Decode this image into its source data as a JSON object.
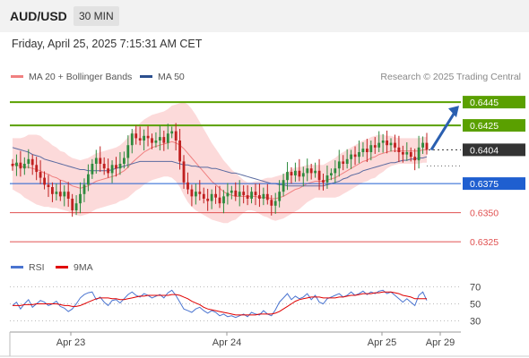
{
  "header": {
    "symbol": "AUD/USD",
    "timeframe": "30 MIN"
  },
  "datetime": "Friday, April 25, 2025 7:15:31 AM CET",
  "legend": {
    "bollinger_label": "MA 20 + Bollinger Bands",
    "ma50_label": "MA 50",
    "credit": "Research © 2025 Trading Central",
    "bollinger_color": "#f08080",
    "ma50_color": "#2b4f8e"
  },
  "rsi_legend": {
    "rsi_label": "RSI",
    "ma_label": "9MA",
    "rsi_color": "#4a74d0",
    "ma_color": "#e00000"
  },
  "chart_data": {
    "type": "candlestick",
    "price_range": [
      0.6312,
      0.6462
    ],
    "current_price": 0.6404,
    "levels": [
      {
        "label": "0.6445",
        "value": 0.6445,
        "kind": "resistance",
        "color": "#5aa000"
      },
      {
        "label": "0.6425",
        "value": 0.6425,
        "kind": "resistance",
        "color": "#5aa000"
      },
      {
        "label": "0.6404",
        "value": 0.6404,
        "kind": "current",
        "color": "#333333"
      },
      {
        "label": "0.6375",
        "value": 0.6375,
        "kind": "pivot",
        "color": "#1f5fd0"
      },
      {
        "label": "0.6350",
        "value": 0.635,
        "kind": "support",
        "color": "#e05050"
      },
      {
        "label": "0.6325",
        "value": 0.6325,
        "kind": "support",
        "color": "#e05050"
      }
    ],
    "forecast_target": 0.6445,
    "x_labels": [
      "Apr 23",
      "Apr 24",
      "Apr 25",
      "Apr 29"
    ],
    "closes": [
      0.639,
      0.6393,
      0.6388,
      0.6392,
      0.6396,
      0.6391,
      0.6385,
      0.638,
      0.6374,
      0.6372,
      0.6366,
      0.6368,
      0.6364,
      0.6368,
      0.6362,
      0.6352,
      0.6358,
      0.6366,
      0.6374,
      0.6383,
      0.6392,
      0.6397,
      0.6392,
      0.6388,
      0.6384,
      0.6391,
      0.6388,
      0.6392,
      0.6397,
      0.6408,
      0.6418,
      0.6414,
      0.6412,
      0.6416,
      0.6414,
      0.641,
      0.6412,
      0.6415,
      0.641,
      0.6418,
      0.642,
      0.6412,
      0.6394,
      0.6376,
      0.637,
      0.6364,
      0.6368,
      0.6366,
      0.6362,
      0.636,
      0.6366,
      0.6363,
      0.6358,
      0.6364,
      0.6367,
      0.6369,
      0.6364,
      0.6368,
      0.6365,
      0.6362,
      0.6368,
      0.6365,
      0.6362,
      0.6366,
      0.6361,
      0.6356,
      0.636,
      0.6368,
      0.6378,
      0.6385,
      0.6382,
      0.6386,
      0.6381,
      0.6384,
      0.6388,
      0.6384,
      0.6386,
      0.6378,
      0.6376,
      0.6382,
      0.6384,
      0.6388,
      0.6394,
      0.6392,
      0.6396,
      0.64,
      0.6398,
      0.6402,
      0.6405,
      0.6402,
      0.6408,
      0.6406,
      0.641,
      0.6412,
      0.6408,
      0.641,
      0.6406,
      0.6402,
      0.64,
      0.6402,
      0.6398,
      0.6395,
      0.6406,
      0.641,
      0.6404
    ],
    "ma20": [
      0.6392,
      0.6391,
      0.639,
      0.6389,
      0.6389,
      0.6388,
      0.6387,
      0.6386,
      0.6384,
      0.6383,
      0.6381,
      0.638,
      0.6378,
      0.6377,
      0.6375,
      0.6373,
      0.6372,
      0.6371,
      0.6372,
      0.6373,
      0.6375,
      0.6377,
      0.6378,
      0.6379,
      0.638,
      0.6381,
      0.6382,
      0.6384,
      0.6386,
      0.6389,
      0.6393,
      0.6396,
      0.6399,
      0.6402,
      0.6404,
      0.6406,
      0.6407,
      0.6408,
      0.6409,
      0.641,
      0.6411,
      0.641,
      0.6408,
      0.6405,
      0.6401,
      0.6397,
      0.6393,
      0.6389,
      0.6385,
      0.6381,
      0.6377,
      0.6374,
      0.6371,
      0.6368,
      0.6366,
      0.6365,
      0.6364,
      0.6364,
      0.6364,
      0.6364,
      0.6364,
      0.6364,
      0.6363,
      0.6363,
      0.6363,
      0.6362,
      0.6362,
      0.6363,
      0.6364,
      0.6366,
      0.6368,
      0.637,
      0.6371,
      0.6373,
      0.6375,
      0.6376,
      0.6377,
      0.6377,
      0.6377,
      0.6378,
      0.6379,
      0.638,
      0.6382,
      0.6384,
      0.6386,
      0.6388,
      0.639,
      0.6392,
      0.6394,
      0.6395,
      0.6397,
      0.6398,
      0.64,
      0.6401,
      0.6402,
      0.6403,
      0.6403,
      0.6403,
      0.6403,
      0.6403,
      0.6403,
      0.6403,
      0.6403,
      0.6404,
      0.6404
    ],
    "ma50": [
      0.6406,
      0.6405,
      0.6404,
      0.6403,
      0.6402,
      0.64,
      0.6399,
      0.6398,
      0.6396,
      0.6395,
      0.6394,
      0.6393,
      0.6392,
      0.6391,
      0.639,
      0.6389,
      0.6388,
      0.6387,
      0.6387,
      0.6386,
      0.6386,
      0.6386,
      0.6386,
      0.6386,
      0.6386,
      0.6387,
      0.6388,
      0.6389,
      0.639,
      0.6391,
      0.6392,
      0.6393,
      0.6394,
      0.6394,
      0.6394,
      0.6394,
      0.6394,
      0.6394,
      0.6394,
      0.6394,
      0.6394,
      0.6393,
      0.6392,
      0.6391,
      0.6391,
      0.639,
      0.639,
      0.6389,
      0.6389,
      0.6389,
      0.6388,
      0.6388,
      0.6387,
      0.6386,
      0.6385,
      0.6384,
      0.6384,
      0.6383,
      0.6382,
      0.6381,
      0.638,
      0.6379,
      0.6378,
      0.6377,
      0.6376,
      0.6375,
      0.6375,
      0.6374,
      0.6374,
      0.6373,
      0.6373,
      0.6373,
      0.6373,
      0.6373,
      0.6373,
      0.6373,
      0.6373,
      0.6373,
      0.6373,
      0.6374,
      0.6375,
      0.6376,
      0.6377,
      0.6379,
      0.638,
      0.6382,
      0.6383,
      0.6384,
      0.6386,
      0.6387,
      0.6388,
      0.6389,
      0.639,
      0.6391,
      0.6392,
      0.6393,
      0.6393,
      0.6394,
      0.6395,
      0.6395,
      0.6396,
      0.6396,
      0.6397,
      0.6397,
      0.6398
    ],
    "band_width": [
      0.0022,
      0.0023,
      0.0024,
      0.0026,
      0.0028,
      0.0029,
      0.003,
      0.003,
      0.0029,
      0.0028,
      0.0027,
      0.0026,
      0.0025,
      0.0025,
      0.0024,
      0.0024,
      0.0024,
      0.0024,
      0.0024,
      0.0024,
      0.0024,
      0.0024,
      0.0024,
      0.0024,
      0.0024,
      0.0024,
      0.0024,
      0.0024,
      0.0025,
      0.0026,
      0.0027,
      0.0027,
      0.0028,
      0.0028,
      0.0028,
      0.0028,
      0.0028,
      0.0028,
      0.0028,
      0.0029,
      0.0031,
      0.0033,
      0.0036,
      0.004,
      0.0042,
      0.0042,
      0.0041,
      0.0039,
      0.0037,
      0.0035,
      0.0033,
      0.0031,
      0.0029,
      0.0027,
      0.0025,
      0.0022,
      0.002,
      0.0017,
      0.0014,
      0.0012,
      0.0012,
      0.0013,
      0.0014,
      0.0016,
      0.0017,
      0.0018,
      0.0019,
      0.0019,
      0.0019,
      0.0019,
      0.0019,
      0.0019,
      0.0018,
      0.0017,
      0.0016,
      0.0015,
      0.0014,
      0.0014,
      0.0014,
      0.0015,
      0.0016,
      0.0017,
      0.0018,
      0.0018,
      0.0018,
      0.0018,
      0.0018,
      0.0018,
      0.0018,
      0.0018,
      0.0018,
      0.0018,
      0.0017,
      0.0016,
      0.0014,
      0.0013,
      0.0012,
      0.0011,
      0.0011,
      0.0011,
      0.0011,
      0.0011,
      0.0011,
      0.0011,
      0.0011
    ],
    "rsi": {
      "y_ticks": [
        70,
        50,
        30
      ],
      "range": [
        20,
        80
      ],
      "rsi": [
        48,
        52,
        44,
        50,
        55,
        46,
        50,
        54,
        52,
        48,
        50,
        53,
        47,
        45,
        41,
        44,
        50,
        57,
        61,
        63,
        64,
        55,
        58,
        52,
        48,
        54,
        55,
        51,
        56,
        61,
        64,
        60,
        58,
        62,
        60,
        57,
        59,
        61,
        57,
        63,
        66,
        60,
        52,
        44,
        42,
        40,
        44,
        46,
        42,
        39,
        42,
        40,
        36,
        38,
        35,
        36,
        34,
        36,
        38,
        35,
        40,
        38,
        37,
        42,
        38,
        36,
        43,
        52,
        57,
        62,
        55,
        59,
        56,
        58,
        62,
        55,
        60,
        52,
        50,
        56,
        58,
        60,
        62,
        58,
        60,
        64,
        60,
        62,
        65,
        61,
        64,
        62,
        65,
        66,
        62,
        64,
        60,
        56,
        52,
        56,
        52,
        48,
        60,
        64,
        54
      ],
      "ma9": [
        48,
        48,
        48,
        49,
        49,
        49,
        50,
        50,
        50,
        50,
        50,
        50,
        49,
        48,
        48,
        47,
        47,
        48,
        50,
        52,
        54,
        56,
        57,
        57,
        57,
        56,
        56,
        55,
        55,
        56,
        57,
        58,
        59,
        59,
        60,
        60,
        60,
        60,
        60,
        60,
        61,
        61,
        60,
        58,
        56,
        53,
        51,
        49,
        46,
        44,
        43,
        42,
        41,
        40,
        39,
        38,
        37,
        37,
        37,
        37,
        37,
        37,
        38,
        38,
        38,
        38,
        39,
        41,
        44,
        47,
        50,
        53,
        55,
        56,
        57,
        58,
        58,
        58,
        57,
        57,
        57,
        57,
        58,
        58,
        59,
        60,
        60,
        61,
        62,
        62,
        62,
        63,
        63,
        64,
        64,
        64,
        63,
        62,
        60,
        59,
        58,
        56,
        56,
        56,
        56
      ]
    }
  }
}
